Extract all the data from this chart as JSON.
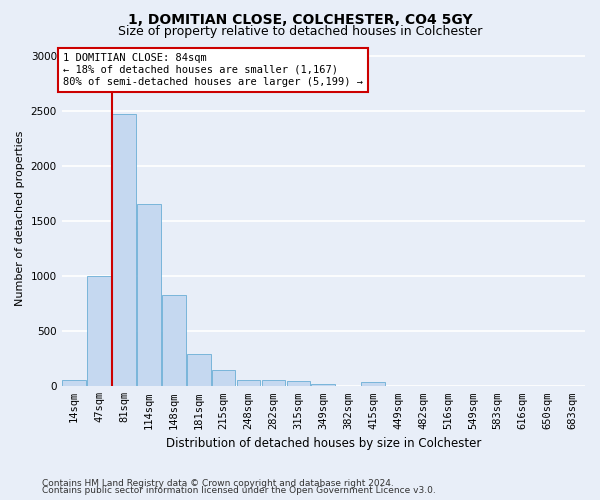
{
  "title_line1": "1, DOMITIAN CLOSE, COLCHESTER, CO4 5GY",
  "title_line2": "Size of property relative to detached houses in Colchester",
  "xlabel": "Distribution of detached houses by size in Colchester",
  "ylabel": "Number of detached properties",
  "footer_line1": "Contains HM Land Registry data © Crown copyright and database right 2024.",
  "footer_line2": "Contains public sector information licensed under the Open Government Licence v3.0.",
  "annotation_line1": "1 DOMITIAN CLOSE: 84sqm",
  "annotation_line2": "← 18% of detached houses are smaller (1,167)",
  "annotation_line3": "80% of semi-detached houses are larger (5,199) →",
  "bar_heights": [
    60,
    1000,
    2470,
    1650,
    830,
    290,
    145,
    60,
    55,
    45,
    25,
    0,
    35,
    0,
    0,
    0,
    0,
    0,
    0,
    0
  ],
  "bar_color": "#c5d8f0",
  "bar_edge_color": "#6aaed6",
  "vline_color": "#cc0000",
  "ylim": [
    0,
    3050
  ],
  "yticks": [
    0,
    500,
    1000,
    1500,
    2000,
    2500,
    3000
  ],
  "xtick_labels": [
    "14sqm",
    "47sqm",
    "81sqm",
    "114sqm",
    "148sqm",
    "181sqm",
    "215sqm",
    "248sqm",
    "282sqm",
    "315sqm",
    "349sqm",
    "382sqm",
    "415sqm",
    "449sqm",
    "482sqm",
    "516sqm",
    "549sqm",
    "583sqm",
    "616sqm",
    "650sqm",
    "683sqm"
  ],
  "background_color": "#e8eef8",
  "axes_background": "#e8eef8",
  "grid_color": "#ffffff",
  "annotation_box_color": "#cc0000",
  "title_fontsize": 10,
  "subtitle_fontsize": 9,
  "axis_label_fontsize": 8.5,
  "tick_fontsize": 7.5,
  "annotation_fontsize": 7.5,
  "footer_fontsize": 6.5,
  "ylabel_fontsize": 8
}
